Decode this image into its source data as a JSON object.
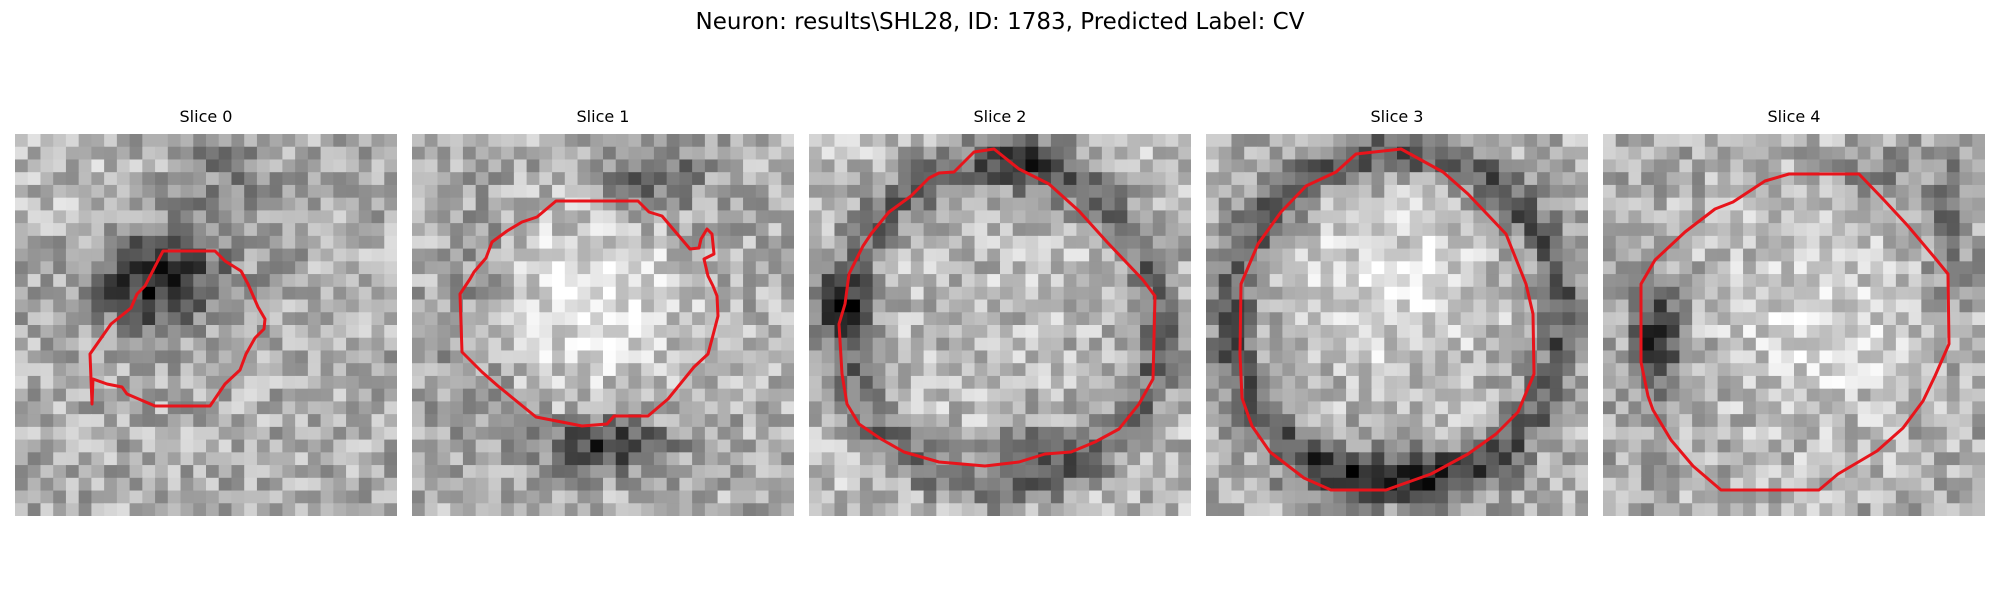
{
  "figure": {
    "title": "Neuron: results\\SHL28, ID: 1783, Predicted Label: CV"
  },
  "slices": [
    {
      "title": "Slice 0",
      "content": "dark-blob"
    },
    {
      "title": "Slice 1",
      "content": "bright-blob-dark-bottom"
    },
    {
      "title": "Slice 2",
      "content": "ring"
    },
    {
      "title": "Slice 3",
      "content": "bright-blob-dark-ring"
    },
    {
      "title": "Slice 4",
      "content": "bright-blob-dark-left"
    }
  ],
  "contour_color": "#e8141b"
}
